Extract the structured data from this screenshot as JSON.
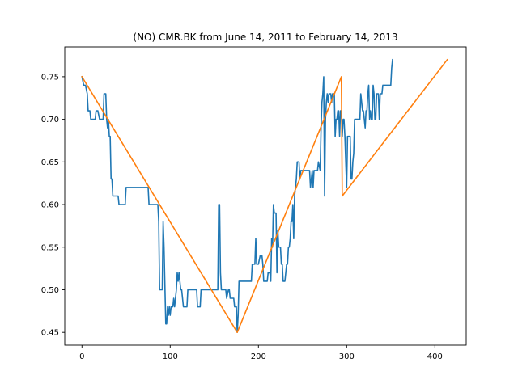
{
  "chart_data": {
    "type": "line",
    "title": "(NO) CMR.BK from June 14, 2011 to February 14, 2013",
    "xlabel": "",
    "ylabel": "",
    "xlim": [
      -19.5,
      435.5
    ],
    "ylim": [
      0.435,
      0.785
    ],
    "xticks": [
      0,
      100,
      200,
      300,
      400
    ],
    "yticks": [
      0.45,
      0.5,
      0.55,
      0.6,
      0.65,
      0.7,
      0.75
    ],
    "grid": false,
    "legend": "none",
    "series": [
      {
        "color": "#1f77b4",
        "points": [
          [
            0,
            0.75
          ],
          [
            2,
            0.74
          ],
          [
            4,
            0.74
          ],
          [
            6,
            0.73
          ],
          [
            7,
            0.71
          ],
          [
            9,
            0.71
          ],
          [
            10,
            0.7
          ],
          [
            12,
            0.7
          ],
          [
            14,
            0.7
          ],
          [
            15,
            0.7
          ],
          [
            16,
            0.71
          ],
          [
            18,
            0.71
          ],
          [
            20,
            0.7
          ],
          [
            22,
            0.7
          ],
          [
            24,
            0.7
          ],
          [
            25,
            0.73
          ],
          [
            27,
            0.73
          ],
          [
            28,
            0.7
          ],
          [
            29,
            0.69
          ],
          [
            30,
            0.7
          ],
          [
            31,
            0.68
          ],
          [
            32,
            0.68
          ],
          [
            33,
            0.63
          ],
          [
            34,
            0.63
          ],
          [
            35,
            0.61
          ],
          [
            38,
            0.61
          ],
          [
            41,
            0.61
          ],
          [
            42,
            0.6
          ],
          [
            46,
            0.6
          ],
          [
            49,
            0.6
          ],
          [
            50,
            0.62
          ],
          [
            55,
            0.62
          ],
          [
            62,
            0.62
          ],
          [
            70,
            0.62
          ],
          [
            75,
            0.62
          ],
          [
            76,
            0.6
          ],
          [
            80,
            0.6
          ],
          [
            86,
            0.6
          ],
          [
            87,
            0.58
          ],
          [
            88,
            0.5
          ],
          [
            91,
            0.5
          ],
          [
            92,
            0.58
          ],
          [
            93,
            0.55
          ],
          [
            95,
            0.46
          ],
          [
            96,
            0.46
          ],
          [
            97,
            0.48
          ],
          [
            98,
            0.47
          ],
          [
            99,
            0.48
          ],
          [
            100,
            0.47
          ],
          [
            101,
            0.48
          ],
          [
            103,
            0.48
          ],
          [
            104,
            0.49
          ],
          [
            105,
            0.48
          ],
          [
            106,
            0.49
          ],
          [
            107,
            0.5
          ],
          [
            108,
            0.52
          ],
          [
            109,
            0.51
          ],
          [
            110,
            0.52
          ],
          [
            111,
            0.51
          ],
          [
            112,
            0.5
          ],
          [
            113,
            0.5
          ],
          [
            114,
            0.49
          ],
          [
            115,
            0.48
          ],
          [
            117,
            0.48
          ],
          [
            119,
            0.48
          ],
          [
            120,
            0.5
          ],
          [
            125,
            0.5
          ],
          [
            130,
            0.5
          ],
          [
            131,
            0.48
          ],
          [
            134,
            0.48
          ],
          [
            135,
            0.5
          ],
          [
            140,
            0.5
          ],
          [
            145,
            0.5
          ],
          [
            150,
            0.5
          ],
          [
            154,
            0.5
          ],
          [
            155,
            0.6
          ],
          [
            156,
            0.6
          ],
          [
            157,
            0.52
          ],
          [
            158,
            0.5
          ],
          [
            162,
            0.5
          ],
          [
            163,
            0.5
          ],
          [
            164,
            0.49
          ],
          [
            166,
            0.5
          ],
          [
            167,
            0.5
          ],
          [
            168,
            0.49
          ],
          [
            170,
            0.49
          ],
          [
            172,
            0.49
          ],
          [
            173,
            0.48
          ],
          [
            175,
            0.48
          ],
          [
            176,
            0.45
          ],
          [
            177,
            0.47
          ],
          [
            178,
            0.51
          ],
          [
            180,
            0.51
          ],
          [
            182,
            0.51
          ],
          [
            184,
            0.51
          ],
          [
            186,
            0.51
          ],
          [
            188,
            0.51
          ],
          [
            190,
            0.51
          ],
          [
            192,
            0.51
          ],
          [
            193,
            0.53
          ],
          [
            196,
            0.53
          ],
          [
            197,
            0.56
          ],
          [
            198,
            0.53
          ],
          [
            200,
            0.53
          ],
          [
            202,
            0.54
          ],
          [
            204,
            0.54
          ],
          [
            205,
            0.53
          ],
          [
            206,
            0.51
          ],
          [
            208,
            0.51
          ],
          [
            210,
            0.51
          ],
          [
            211,
            0.52
          ],
          [
            213,
            0.52
          ],
          [
            214,
            0.51
          ],
          [
            215,
            0.56
          ],
          [
            216,
            0.55
          ],
          [
            217,
            0.6
          ],
          [
            218,
            0.59
          ],
          [
            220,
            0.59
          ],
          [
            221,
            0.52
          ],
          [
            222,
            0.57
          ],
          [
            223,
            0.55
          ],
          [
            225,
            0.55
          ],
          [
            226,
            0.53
          ],
          [
            227,
            0.53
          ],
          [
            228,
            0.51
          ],
          [
            230,
            0.51
          ],
          [
            231,
            0.52
          ],
          [
            232,
            0.53
          ],
          [
            233,
            0.53
          ],
          [
            234,
            0.55
          ],
          [
            235,
            0.55
          ],
          [
            236,
            0.56
          ],
          [
            237,
            0.58
          ],
          [
            238,
            0.58
          ],
          [
            239,
            0.6
          ],
          [
            240,
            0.56
          ],
          [
            241,
            0.61
          ],
          [
            242,
            0.62
          ],
          [
            243,
            0.63
          ],
          [
            244,
            0.65
          ],
          [
            246,
            0.65
          ],
          [
            247,
            0.63
          ],
          [
            248,
            0.64
          ],
          [
            250,
            0.64
          ],
          [
            252,
            0.64
          ],
          [
            254,
            0.64
          ],
          [
            256,
            0.64
          ],
          [
            258,
            0.64
          ],
          [
            259,
            0.62
          ],
          [
            261,
            0.64
          ],
          [
            262,
            0.62
          ],
          [
            263,
            0.64
          ],
          [
            265,
            0.64
          ],
          [
            267,
            0.64
          ],
          [
            268,
            0.65
          ],
          [
            270,
            0.64
          ],
          [
            271,
            0.69
          ],
          [
            272,
            0.72
          ],
          [
            273,
            0.73
          ],
          [
            274,
            0.75
          ],
          [
            275,
            0.61
          ],
          [
            276,
            0.7
          ],
          [
            277,
            0.72
          ],
          [
            278,
            0.73
          ],
          [
            279,
            0.72
          ],
          [
            280,
            0.73
          ],
          [
            282,
            0.73
          ],
          [
            283,
            0.72
          ],
          [
            284,
            0.73
          ],
          [
            286,
            0.73
          ],
          [
            287,
            0.68
          ],
          [
            288,
            0.7
          ],
          [
            289,
            0.7
          ],
          [
            290,
            0.71
          ],
          [
            291,
            0.71
          ],
          [
            292,
            0.68
          ],
          [
            293,
            0.71
          ],
          [
            294,
            0.71
          ],
          [
            295,
            0.68
          ],
          [
            296,
            0.7
          ],
          [
            297,
            0.7
          ],
          [
            298,
            0.68
          ],
          [
            299,
            0.65
          ],
          [
            300,
            0.62
          ],
          [
            301,
            0.68
          ],
          [
            302,
            0.68
          ],
          [
            303,
            0.68
          ],
          [
            304,
            0.68
          ],
          [
            305,
            0.63
          ],
          [
            306,
            0.63
          ],
          [
            307,
            0.65
          ],
          [
            308,
            0.66
          ],
          [
            309,
            0.7
          ],
          [
            310,
            0.7
          ],
          [
            311,
            0.7
          ],
          [
            312,
            0.7
          ],
          [
            313,
            0.7
          ],
          [
            314,
            0.7
          ],
          [
            315,
            0.7
          ],
          [
            316,
            0.73
          ],
          [
            317,
            0.72
          ],
          [
            318,
            0.71
          ],
          [
            319,
            0.71
          ],
          [
            320,
            0.7
          ],
          [
            321,
            0.69
          ],
          [
            322,
            0.71
          ],
          [
            323,
            0.71
          ],
          [
            324,
            0.73
          ],
          [
            325,
            0.74
          ],
          [
            326,
            0.7
          ],
          [
            327,
            0.71
          ],
          [
            328,
            0.7
          ],
          [
            329,
            0.7
          ],
          [
            330,
            0.74
          ],
          [
            331,
            0.73
          ],
          [
            332,
            0.7
          ],
          [
            333,
            0.7
          ],
          [
            334,
            0.73
          ],
          [
            335,
            0.73
          ],
          [
            336,
            0.73
          ],
          [
            337,
            0.7
          ],
          [
            338,
            0.73
          ],
          [
            340,
            0.73
          ],
          [
            341,
            0.74
          ],
          [
            344,
            0.74
          ],
          [
            347,
            0.74
          ],
          [
            349,
            0.74
          ],
          [
            350,
            0.74
          ],
          [
            351,
            0.76
          ],
          [
            352,
            0.77
          ]
        ]
      },
      {
        "color": "#ff7f0e",
        "points": [
          [
            0,
            0.75
          ],
          [
            176,
            0.45
          ],
          [
            294,
            0.75
          ],
          [
            295,
            0.61
          ],
          [
            414,
            0.77
          ]
        ]
      }
    ]
  }
}
